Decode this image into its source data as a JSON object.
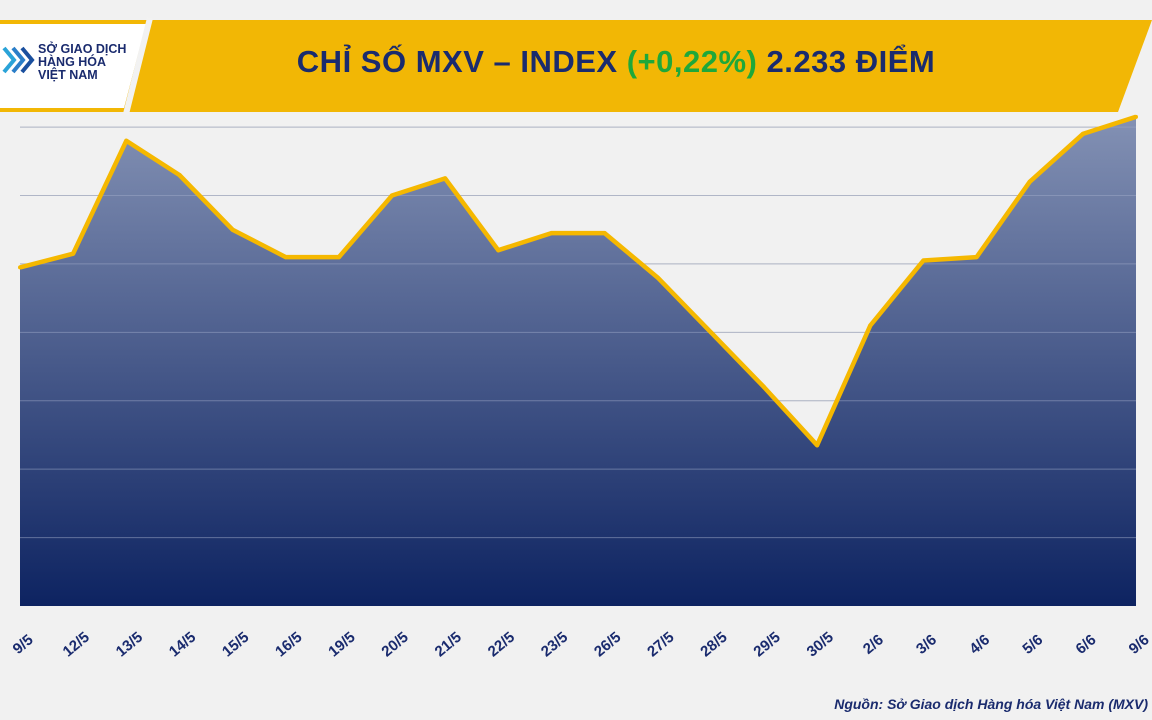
{
  "header": {
    "title_prefix": "CHỈ SỐ MXV – INDEX",
    "title_change": "(+0,22%)",
    "title_suffix": "2.233 ĐIỂM",
    "logo_lines": [
      "SỞ GIAO DỊCH",
      "HÀNG HÓA",
      "VIỆT NAM"
    ]
  },
  "colors": {
    "banner_yellow": "#f2b705",
    "title_navy": "#1a2b6e",
    "change_green": "#1fa83a",
    "line_gold": "#f5b800",
    "area_top": "#8391b4",
    "area_bottom": "#0d2361"
  },
  "chart_data": {
    "type": "area",
    "categories": [
      "9/5",
      "12/5",
      "13/5",
      "14/5",
      "15/5",
      "16/5",
      "19/5",
      "20/5",
      "21/5",
      "22/5",
      "23/5",
      "26/5",
      "27/5",
      "28/5",
      "29/5",
      "30/5",
      "2/6",
      "3/6",
      "4/6",
      "5/6",
      "6/6",
      "9/6"
    ],
    "values": [
      2189,
      2193,
      2226,
      2216,
      2200,
      2192,
      2192,
      2210,
      2215,
      2194,
      2199,
      2199,
      2186,
      2170,
      2154,
      2137,
      2172,
      2191,
      2192,
      2214,
      2228,
      2233
    ],
    "ylim": [
      2090,
      2235
    ],
    "grid": true,
    "ytick_labels_shown": false,
    "source": "Nguồn: Sở Giao dịch Hàng hóa Việt Nam (MXV)"
  }
}
